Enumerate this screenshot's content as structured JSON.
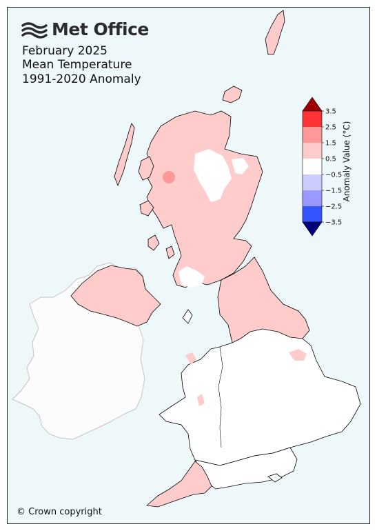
{
  "brand": {
    "name": "Met Office",
    "logo_icon": "met-office-wave-logo"
  },
  "title": {
    "line1": "February 2025",
    "line2": "Mean Temperature",
    "line3": "1991-2020 Anomaly"
  },
  "colorbar": {
    "title": "Anomaly Value (°C)",
    "tick_labels": [
      "3.5",
      "2.5",
      "1.5",
      "0.5",
      "−0.5",
      "−1.5",
      "−2.5",
      "−3.5"
    ],
    "bands": [
      {
        "range": "above 3.5",
        "color": "#9e0000"
      },
      {
        "range": "2.5 to 3.5",
        "color": "#ff3333"
      },
      {
        "range": "1.5 to 2.5",
        "color": "#ff9999"
      },
      {
        "range": "0.5 to 1.5",
        "color": "#ffcccc"
      },
      {
        "range": "-0.5 to 0.5",
        "color": "#ffffff"
      },
      {
        "range": "-1.5 to -0.5",
        "color": "#ccccff"
      },
      {
        "range": "-2.5 to -1.5",
        "color": "#9999ff"
      },
      {
        "range": "-3.5 to -2.5",
        "color": "#3355ff"
      },
      {
        "range": "below -3.5",
        "color": "#00007a"
      }
    ]
  },
  "regions": {
    "northern_scotland": "0.5 to 1.5",
    "west_highlands_spot": "1.5 to 2.5",
    "eastern_scotland": "0.5 to 1.5",
    "grampian_interior": "-0.5 to 0.5",
    "southern_scotland": "0.5 to 1.5",
    "northern_ireland": "0.5 to 1.5",
    "north_england": "0.5 to 1.5",
    "midlands_wales_south": "-0.5 to 0.5",
    "cornwall_devon_west": "0.5 to 1.5",
    "ireland": "no data"
  },
  "colors": {
    "sea": "#eef7fa",
    "ireland": "#fcfcfc",
    "ireland_outline": "#c4c4c4",
    "border": "#000000"
  },
  "copyright": "© Crown copyright"
}
